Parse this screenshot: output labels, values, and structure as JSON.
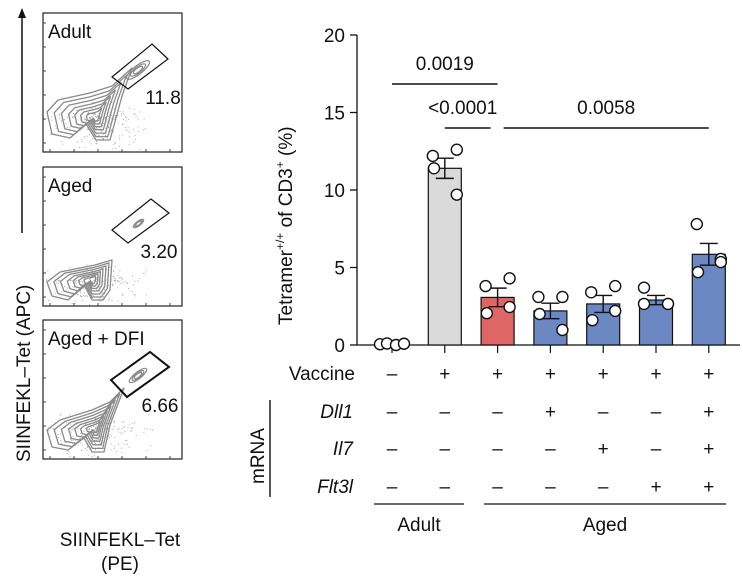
{
  "flow_panels": {
    "y_axis_label": "SIINFEKL–Tet (APC)",
    "x_axis_label_line1": "SIINFEKL–Tet",
    "x_axis_label_line2": "(PE)",
    "panels": [
      {
        "title": "Adult",
        "gate_value": "11.8"
      },
      {
        "title": "Aged",
        "gate_value": "3.20"
      },
      {
        "title": "Aged + DFI",
        "gate_value": "6.66"
      }
    ]
  },
  "chart_data": {
    "type": "bar",
    "ylabel_main": "Tetramer",
    "ylabel_sup1": "+/+",
    "ylabel_mid": " of CD3",
    "ylabel_sup2": "+",
    "ylabel_end": " (%)",
    "ylim": [
      0,
      20
    ],
    "yticks": [
      "0",
      "5",
      "10",
      "15",
      "20"
    ],
    "grid": false,
    "bars": [
      {
        "mean": 0.05,
        "sem": 0.03,
        "color": "#ffffff",
        "points": [
          0.05,
          0.1,
          0.0,
          0.08
        ]
      },
      {
        "mean": 11.4,
        "sem": 0.65,
        "color": "#d9dad9",
        "points": [
          12.2,
          12.6,
          11.4,
          9.7
        ]
      },
      {
        "mean": 3.07,
        "sem": 0.6,
        "color": "#e06666",
        "points": [
          3.8,
          4.3,
          2.05,
          2.45
        ]
      },
      {
        "mean": 2.2,
        "sem": 0.5,
        "color": "#6b88c3",
        "points": [
          3.1,
          3.1,
          2.0,
          0.97
        ]
      },
      {
        "mean": 2.65,
        "sem": 0.55,
        "color": "#6b88c3",
        "points": [
          3.4,
          3.8,
          1.6,
          2.2
        ]
      },
      {
        "mean": 2.9,
        "sem": 0.3,
        "color": "#6b88c3",
        "points": [
          3.7,
          2.65,
          2.65,
          2.65
        ]
      },
      {
        "mean": 5.85,
        "sem": 0.7,
        "color": "#6b88c3",
        "points": [
          7.8,
          5.55,
          4.7,
          5.35
        ]
      }
    ],
    "significance": [
      {
        "label": "0.0019",
        "from": 0,
        "to": 2
      },
      {
        "label": "<0.0001",
        "from": 1,
        "to": 2
      },
      {
        "label": "0.0058",
        "from": 2,
        "to": 6
      }
    ],
    "conditions": {
      "mrna_label": "mRNA",
      "rows": [
        {
          "label": "Vaccine",
          "italic": false,
          "values": [
            "–",
            "+",
            "+",
            "+",
            "+",
            "+",
            "+"
          ]
        },
        {
          "label": "Dll1",
          "italic": true,
          "values": [
            "–",
            "–",
            "–",
            "+",
            "–",
            "–",
            "+"
          ]
        },
        {
          "label": "Il7",
          "italic": true,
          "values": [
            "–",
            "–",
            "–",
            "–",
            "+",
            "–",
            "+"
          ]
        },
        {
          "label": "Flt3l",
          "italic": true,
          "values": [
            "–",
            "–",
            "–",
            "–",
            "–",
            "+",
            "+"
          ]
        }
      ],
      "groups": [
        {
          "label": "Adult",
          "from": 0,
          "to": 1
        },
        {
          "label": "Aged",
          "from": 2,
          "to": 6
        }
      ]
    }
  }
}
